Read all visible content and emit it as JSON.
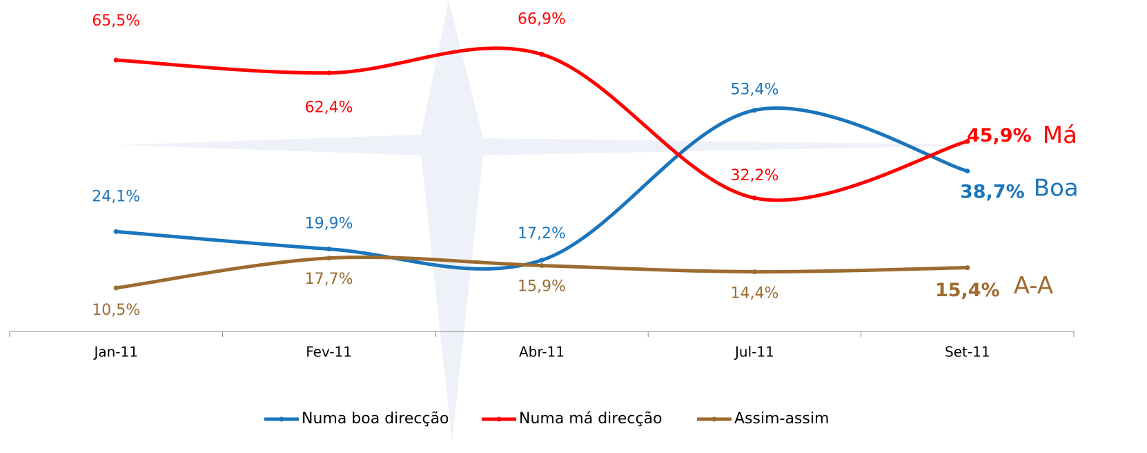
{
  "chart_data": {
    "type": "line",
    "categories": [
      "Jan-11",
      "Fev-11",
      "Abr-11",
      "Jul-11",
      "Set-11"
    ],
    "ylim": [
      0,
      80
    ],
    "series": [
      {
        "name": "Numa boa direcção",
        "color": "#1a75bc",
        "end_label": "Boa",
        "values": [
          24.1,
          19.9,
          17.2,
          53.4,
          38.7
        ],
        "value_labels": [
          "24,1%",
          "19,9%",
          "17,2%",
          "53,4%",
          "38,7%"
        ]
      },
      {
        "name": "Numa má direcção",
        "color": "#ff0000",
        "end_label": "Má",
        "values": [
          65.5,
          62.4,
          66.9,
          32.2,
          45.9
        ],
        "value_labels": [
          "65,5%",
          "62,4%",
          "66,9%",
          "32,2%",
          "45,9%"
        ]
      },
      {
        "name": "Assim-assim",
        "color": "#9c6b30",
        "end_label": "A-A",
        "values": [
          10.5,
          17.7,
          15.9,
          14.4,
          15.4
        ],
        "value_labels": [
          "10,5%",
          "17,7%",
          "15,9%",
          "14,4%",
          "15,4%"
        ]
      }
    ]
  }
}
